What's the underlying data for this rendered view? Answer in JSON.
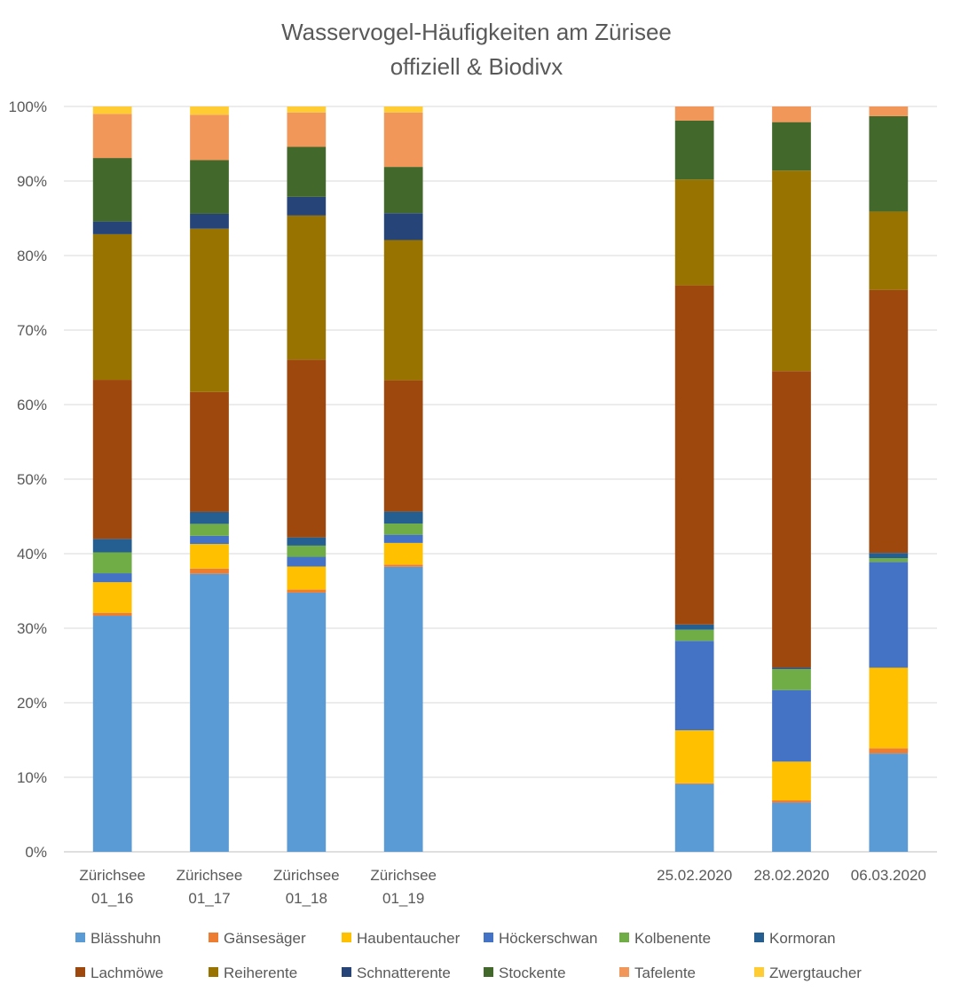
{
  "chart_data": {
    "type": "bar",
    "stacked": true,
    "normalized": true,
    "title": "Wasservogel-Häufigkeiten am Zürisee",
    "subtitle": "offiziell & Biodivx",
    "categories": [
      [
        "Zürichsee",
        "01_16"
      ],
      [
        "Zürichsee",
        "01_17"
      ],
      [
        "Zürichsee",
        "01_18"
      ],
      [
        "Zürichsee",
        "01_19"
      ],
      [
        "",
        ""
      ],
      [
        "",
        ""
      ],
      [
        "25.02.2020"
      ],
      [
        "28.02.2020"
      ],
      [
        "06.03.2020"
      ]
    ],
    "ylim": [
      0,
      100
    ],
    "yticks": [
      "0%",
      "10%",
      "20%",
      "30%",
      "40%",
      "50%",
      "60%",
      "70%",
      "80%",
      "90%",
      "100%"
    ],
    "grid": true,
    "legend_position": "bottom",
    "series": [
      {
        "name": "Blässhuhn",
        "color": "#5B9BD5",
        "values": [
          31.6,
          37.3,
          34.7,
          38.2,
          0,
          0,
          9.1,
          6.6,
          13.2
        ]
      },
      {
        "name": "Gänsesäger",
        "color": "#ED7D31",
        "values": [
          0.4,
          0.7,
          0.4,
          0.3,
          0,
          0,
          0.1,
          0.3,
          0.7
        ]
      },
      {
        "name": "Haubentaucher",
        "color": "#FFC000",
        "values": [
          4.1,
          3.3,
          3.1,
          2.9,
          0,
          0,
          7.1,
          5.2,
          10.8
        ]
      },
      {
        "name": "Höckerschwan",
        "color": "#4472C4",
        "values": [
          1.2,
          1.1,
          1.3,
          1.1,
          0,
          0,
          12.0,
          9.6,
          14.2
        ]
      },
      {
        "name": "Kolbenente",
        "color": "#70AD47",
        "values": [
          2.8,
          1.6,
          1.5,
          1.5,
          0,
          0,
          1.5,
          2.8,
          0.5
        ]
      },
      {
        "name": "Kormoran",
        "color": "#255E91",
        "values": [
          1.8,
          1.6,
          1.1,
          1.6,
          0,
          0,
          0.7,
          0.2,
          0.7
        ]
      },
      {
        "name": "Lachmöwe",
        "color": "#9E480E",
        "values": [
          21.3,
          16.1,
          23.8,
          17.6,
          0,
          0,
          45.5,
          39.8,
          35.3
        ]
      },
      {
        "name": "Reiherente",
        "color": "#997300",
        "values": [
          19.5,
          21.9,
          19.3,
          18.8,
          0,
          0,
          14.2,
          26.9,
          10.5
        ]
      },
      {
        "name": "Schnatterente",
        "color": "#264478",
        "values": [
          1.7,
          2.0,
          2.5,
          3.6,
          0,
          0,
          0,
          0,
          0
        ]
      },
      {
        "name": "Stockente",
        "color": "#43682B",
        "values": [
          8.5,
          7.2,
          6.7,
          6.2,
          0,
          0,
          7.9,
          6.5,
          12.8
        ]
      },
      {
        "name": "Tafelente",
        "color": "#F1975A",
        "values": [
          5.9,
          6.1,
          4.6,
          7.3,
          0,
          0,
          1.9,
          2.1,
          1.3
        ]
      },
      {
        "name": "Zwergtaucher",
        "color": "#FFCD33",
        "values": [
          1.0,
          1.1,
          0.8,
          0.8,
          0,
          0,
          0,
          0,
          0
        ]
      }
    ]
  }
}
